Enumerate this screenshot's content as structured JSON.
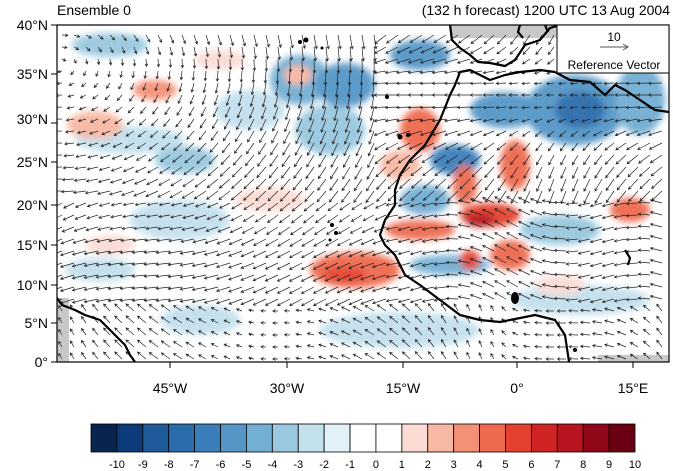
{
  "header": {
    "left_title": "Ensemble 0",
    "right_title": "(132 h forecast) 1200 UTC 13 Aug 2004"
  },
  "map": {
    "lat_labels": [
      "40°N",
      "35°N",
      "30°N",
      "25°N",
      "20°N",
      "15°N",
      "10°N",
      "5°N",
      "0°"
    ],
    "lon_labels": [
      "45°W",
      "30°W",
      "15°W",
      "0°",
      "15°E"
    ],
    "reference_vector": {
      "value": "10",
      "label": "Reference Vector"
    }
  },
  "colorbar": {
    "labels": [
      "-10",
      "-9",
      "-8",
      "-7",
      "-6",
      "-5",
      "-4",
      "-3",
      "-2",
      "-1",
      "0",
      "1",
      "2",
      "3",
      "4",
      "5",
      "6",
      "7",
      "8",
      "9",
      "10"
    ],
    "colors": [
      "#08244f",
      "#0d3a78",
      "#1f5a9a",
      "#2b6cab",
      "#3a7fba",
      "#5596c7",
      "#73aed3",
      "#99c8df",
      "#c3e0ed",
      "#e3f1f8",
      "#ffffff",
      "#ffffff",
      "#fbdcd4",
      "#f7b8a4",
      "#f39177",
      "#ee6a4f",
      "#e4422f",
      "#cf2326",
      "#b8141f",
      "#91071a",
      "#6a0011"
    ]
  },
  "colors": {
    "land": "#000000",
    "missing": "#c8c8c8",
    "vector": "#222222"
  }
}
